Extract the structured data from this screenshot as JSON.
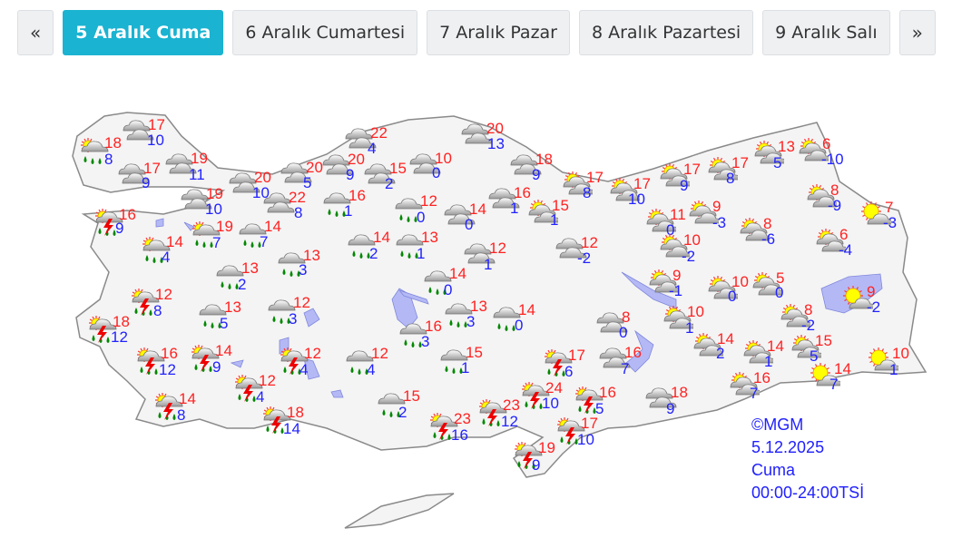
{
  "tabs": [
    {
      "label": "«",
      "type": "prev"
    },
    {
      "label": "5 Aralık Cuma",
      "active": true
    },
    {
      "label": "6 Aralık Cumartesi"
    },
    {
      "label": "7 Aralık Pazar"
    },
    {
      "label": "8 Aralık Pazartesi"
    },
    {
      "label": "9 Aralık Salı"
    },
    {
      "label": "»",
      "type": "next"
    }
  ],
  "colors": {
    "active_tab": "#1ab3d1",
    "max_temp": "#ff2222",
    "min_temp": "#2222ff",
    "lake": "#b4b9f5",
    "land": "#f4f4f4"
  },
  "credit": {
    "source": "©MGM",
    "date": "5.12.2025",
    "day": "Cuma",
    "period": "00:00-24:00TSİ"
  },
  "cities": [
    {
      "icon": "partly-cloudy-rain",
      "max": "18",
      "min": "8"
    },
    {
      "icon": "cloudy",
      "max": "17",
      "min": "10"
    },
    {
      "icon": "cloudy",
      "max": "17",
      "min": "9"
    },
    {
      "icon": "cloudy",
      "max": "19",
      "min": "11"
    },
    {
      "icon": "cloudy",
      "max": "19",
      "min": "10"
    },
    {
      "icon": "cloudy",
      "max": "20",
      "min": "10"
    },
    {
      "icon": "cloudy",
      "max": "22",
      "min": "8"
    },
    {
      "icon": "cloudy",
      "max": "20",
      "min": "5"
    },
    {
      "icon": "cloudy",
      "max": "20",
      "min": "9"
    },
    {
      "icon": "cloudy",
      "max": "22",
      "min": "4"
    },
    {
      "icon": "cloudy",
      "max": "15",
      "min": "2"
    },
    {
      "icon": "cloudy",
      "max": "10",
      "min": "0"
    },
    {
      "icon": "cloudy",
      "max": "20",
      "min": "13"
    },
    {
      "icon": "rain",
      "max": "16",
      "min": "1"
    },
    {
      "icon": "rain",
      "max": "12",
      "min": "0"
    },
    {
      "icon": "cloudy",
      "max": "14",
      "min": "0"
    },
    {
      "icon": "thunderstorm",
      "max": "16",
      "min": "9"
    },
    {
      "icon": "partly-cloudy-rain",
      "max": "14",
      "min": "4"
    },
    {
      "icon": "partly-cloudy-rain",
      "max": "19",
      "min": "7"
    },
    {
      "icon": "rain",
      "max": "14",
      "min": "7"
    },
    {
      "icon": "rain",
      "max": "13",
      "min": "3"
    },
    {
      "icon": "rain",
      "max": "13",
      "min": "2"
    },
    {
      "icon": "rain",
      "max": "14",
      "min": "2"
    },
    {
      "icon": "rain",
      "max": "13",
      "min": "1"
    },
    {
      "icon": "cloudy",
      "max": "12",
      "min": "1"
    },
    {
      "icon": "rain",
      "max": "14",
      "min": "0"
    },
    {
      "icon": "thunderstorm",
      "max": "12",
      "min": "8"
    },
    {
      "icon": "thunderstorm",
      "max": "18",
      "min": "12"
    },
    {
      "icon": "rain",
      "max": "13",
      "min": "5"
    },
    {
      "icon": "rain",
      "max": "12",
      "min": "3"
    },
    {
      "icon": "rain",
      "max": "16",
      "min": "3"
    },
    {
      "icon": "rain",
      "max": "13",
      "min": "3"
    },
    {
      "icon": "rain",
      "max": "14",
      "min": "0"
    },
    {
      "icon": "thunderstorm",
      "max": "16",
      "min": "12"
    },
    {
      "icon": "thunderstorm",
      "max": "14",
      "min": "9"
    },
    {
      "icon": "thunderstorm",
      "max": "12",
      "min": "4"
    },
    {
      "icon": "rain",
      "max": "12",
      "min": "4"
    },
    {
      "icon": "rain",
      "max": "15",
      "min": "1"
    },
    {
      "icon": "thunderstorm",
      "max": "12",
      "min": "4"
    },
    {
      "icon": "thunderstorm",
      "max": "14",
      "min": "8"
    },
    {
      "icon": "rain",
      "max": "15",
      "min": "2"
    },
    {
      "icon": "thunderstorm",
      "max": "18",
      "min": "14"
    },
    {
      "icon": "thunderstorm",
      "max": "23",
      "min": "16"
    },
    {
      "icon": "thunderstorm",
      "max": "23",
      "min": "12"
    },
    {
      "icon": "thunderstorm",
      "max": "19",
      "min": "9"
    },
    {
      "icon": "thunderstorm",
      "max": "17",
      "min": "6"
    },
    {
      "icon": "thunderstorm",
      "max": "24",
      "min": "10"
    },
    {
      "icon": "thunderstorm",
      "max": "16",
      "min": "5"
    },
    {
      "icon": "thunderstorm",
      "max": "17",
      "min": "10"
    },
    {
      "icon": "cloudy",
      "max": "18",
      "min": "9"
    },
    {
      "icon": "cloudy",
      "max": "16",
      "min": "7"
    },
    {
      "icon": "cloudy",
      "max": "8",
      "min": "0"
    },
    {
      "icon": "cloudy",
      "max": "18",
      "min": "9"
    },
    {
      "icon": "cloudy",
      "max": "16",
      "min": "1"
    },
    {
      "icon": "partly-cloudy",
      "max": "15",
      "min": "1"
    },
    {
      "icon": "cloudy",
      "max": "12",
      "min": "-2"
    },
    {
      "icon": "partly-cloudy",
      "max": "17",
      "min": "8"
    },
    {
      "icon": "partly-cloudy",
      "max": "17",
      "min": "10"
    },
    {
      "icon": "partly-cloudy",
      "max": "17",
      "min": "9"
    },
    {
      "icon": "partly-cloudy",
      "max": "17",
      "min": "8"
    },
    {
      "icon": "partly-cloudy",
      "max": "13",
      "min": "5"
    },
    {
      "icon": "partly-cloudy",
      "max": "6",
      "min": "-10"
    },
    {
      "icon": "partly-cloudy",
      "max": "11",
      "min": "0"
    },
    {
      "icon": "partly-cloudy",
      "max": "9",
      "min": "-3"
    },
    {
      "icon": "partly-cloudy",
      "max": "10",
      "min": "-2"
    },
    {
      "icon": "partly-cloudy",
      "max": "8",
      "min": "-6"
    },
    {
      "icon": "partly-cloudy",
      "max": "8",
      "min": "-9"
    },
    {
      "icon": "mostly-sunny",
      "max": "7",
      "min": "-3"
    },
    {
      "icon": "partly-cloudy",
      "max": "6",
      "min": "-4"
    },
    {
      "icon": "partly-cloudy",
      "max": "9",
      "min": "-1"
    },
    {
      "icon": "partly-cloudy",
      "max": "10",
      "min": "0"
    },
    {
      "icon": "partly-cloudy",
      "max": "5",
      "min": "0"
    },
    {
      "icon": "mostly-sunny",
      "max": "9",
      "min": "-2"
    },
    {
      "icon": "partly-cloudy",
      "max": "10",
      "min": "1"
    },
    {
      "icon": "partly-cloudy",
      "max": "8",
      "min": "-2"
    },
    {
      "icon": "partly-cloudy",
      "max": "14",
      "min": "2"
    },
    {
      "icon": "partly-cloudy",
      "max": "14",
      "min": "1"
    },
    {
      "icon": "partly-cloudy",
      "max": "15",
      "min": "5"
    },
    {
      "icon": "partly-cloudy",
      "max": "16",
      "min": "7"
    },
    {
      "icon": "mostly-sunny",
      "max": "14",
      "min": "7"
    },
    {
      "icon": "mostly-sunny",
      "max": "10",
      "min": "1"
    }
  ]
}
